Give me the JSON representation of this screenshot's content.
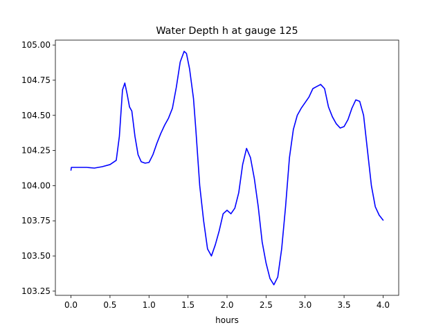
{
  "chart_data": {
    "type": "line",
    "title": "Water Depth h at gauge 125",
    "xlabel": "hours",
    "ylabel": "",
    "xlim": [
      -0.2,
      4.2
    ],
    "ylim": [
      103.22,
      105.035
    ],
    "x_ticks": [
      0.0,
      0.5,
      1.0,
      1.5,
      2.0,
      2.5,
      3.0,
      3.5,
      4.0
    ],
    "x_tick_labels": [
      "0.0",
      "0.5",
      "1.0",
      "1.5",
      "2.0",
      "2.5",
      "3.0",
      "3.5",
      "4.0"
    ],
    "y_ticks": [
      103.25,
      103.5,
      103.75,
      104.0,
      104.25,
      104.5,
      104.75,
      105.0
    ],
    "y_tick_labels": [
      "103.25",
      "103.50",
      "103.75",
      "104.00",
      "104.25",
      "104.50",
      "104.75",
      "105.00"
    ],
    "grid": false,
    "series": [
      {
        "color": "#0000ff",
        "points": [
          [
            0.0,
            104.11
          ],
          [
            0.005,
            104.13
          ],
          [
            0.1,
            104.13
          ],
          [
            0.2,
            104.13
          ],
          [
            0.3,
            104.125
          ],
          [
            0.4,
            104.135
          ],
          [
            0.5,
            104.15
          ],
          [
            0.58,
            104.18
          ],
          [
            0.62,
            104.35
          ],
          [
            0.66,
            104.68
          ],
          [
            0.69,
            104.73
          ],
          [
            0.72,
            104.65
          ],
          [
            0.75,
            104.56
          ],
          [
            0.78,
            104.53
          ],
          [
            0.82,
            104.35
          ],
          [
            0.86,
            104.22
          ],
          [
            0.9,
            104.17
          ],
          [
            0.95,
            104.16
          ],
          [
            1.0,
            104.165
          ],
          [
            1.05,
            104.22
          ],
          [
            1.1,
            104.3
          ],
          [
            1.15,
            104.37
          ],
          [
            1.2,
            104.43
          ],
          [
            1.25,
            104.48
          ],
          [
            1.3,
            104.55
          ],
          [
            1.35,
            104.7
          ],
          [
            1.4,
            104.88
          ],
          [
            1.45,
            104.955
          ],
          [
            1.48,
            104.94
          ],
          [
            1.52,
            104.83
          ],
          [
            1.57,
            104.62
          ],
          [
            1.6,
            104.4
          ],
          [
            1.65,
            104.0
          ],
          [
            1.7,
            103.75
          ],
          [
            1.75,
            103.55
          ],
          [
            1.8,
            103.5
          ],
          [
            1.85,
            103.58
          ],
          [
            1.9,
            103.68
          ],
          [
            1.95,
            103.8
          ],
          [
            2.0,
            103.825
          ],
          [
            2.05,
            103.8
          ],
          [
            2.1,
            103.84
          ],
          [
            2.15,
            103.95
          ],
          [
            2.2,
            104.15
          ],
          [
            2.25,
            104.265
          ],
          [
            2.3,
            104.2
          ],
          [
            2.35,
            104.05
          ],
          [
            2.4,
            103.85
          ],
          [
            2.45,
            103.6
          ],
          [
            2.5,
            103.45
          ],
          [
            2.55,
            103.34
          ],
          [
            2.6,
            103.295
          ],
          [
            2.65,
            103.35
          ],
          [
            2.7,
            103.55
          ],
          [
            2.75,
            103.85
          ],
          [
            2.8,
            104.2
          ],
          [
            2.85,
            104.4
          ],
          [
            2.9,
            104.5
          ],
          [
            2.95,
            104.55
          ],
          [
            3.0,
            104.59
          ],
          [
            3.05,
            104.63
          ],
          [
            3.1,
            104.69
          ],
          [
            3.15,
            104.705
          ],
          [
            3.2,
            104.72
          ],
          [
            3.25,
            104.69
          ],
          [
            3.3,
            104.56
          ],
          [
            3.35,
            104.49
          ],
          [
            3.4,
            104.44
          ],
          [
            3.45,
            104.41
          ],
          [
            3.5,
            104.42
          ],
          [
            3.55,
            104.47
          ],
          [
            3.6,
            104.55
          ],
          [
            3.65,
            104.61
          ],
          [
            3.7,
            104.6
          ],
          [
            3.75,
            104.5
          ],
          [
            3.8,
            104.25
          ],
          [
            3.85,
            104.0
          ],
          [
            3.9,
            103.85
          ],
          [
            3.95,
            103.79
          ],
          [
            4.0,
            103.755
          ]
        ]
      }
    ]
  }
}
